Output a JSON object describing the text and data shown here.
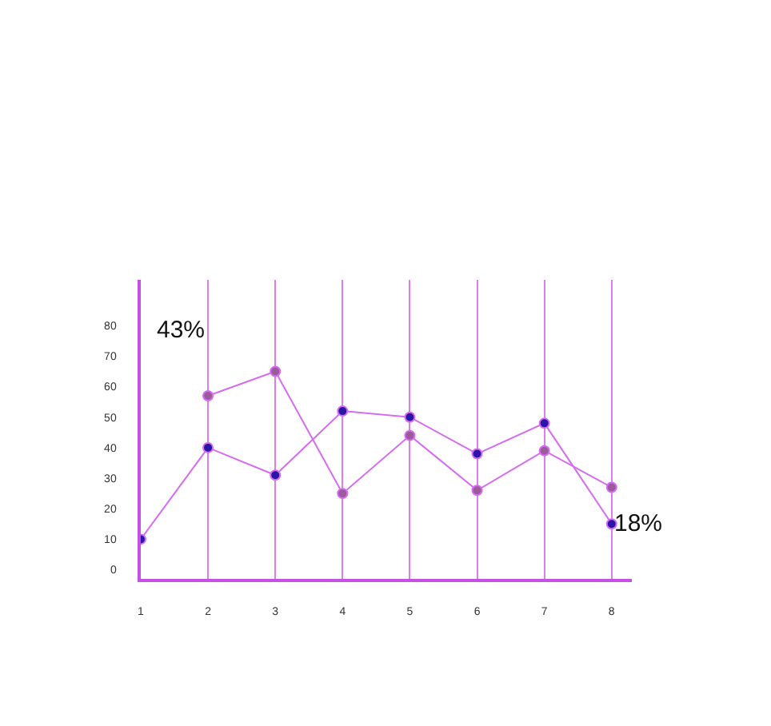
{
  "chart_data": {
    "type": "line",
    "x": [
      1,
      2,
      3,
      4,
      5,
      6,
      7,
      8
    ],
    "series": [
      {
        "color": "#2a17a6",
        "values": [
          10,
          40,
          31,
          52,
          50,
          38,
          48,
          15
        ]
      },
      {
        "color": "#9b5a9b",
        "values": [
          null,
          57,
          65,
          25,
          44,
          26,
          39,
          27
        ]
      }
    ],
    "xlim": [
      1,
      8.3
    ],
    "xticks": [
      1,
      2,
      3,
      4,
      5,
      6,
      7,
      8
    ],
    "ylim": [
      -3,
      95
    ],
    "yticks": [
      0,
      10,
      20,
      30,
      40,
      50,
      60,
      70,
      80
    ],
    "grid": "x",
    "marker": "circle",
    "line_style": "solid",
    "annotations": [
      "43%",
      {
        "text": "18%",
        "x": 8,
        "y": 15
      }
    ]
  }
}
